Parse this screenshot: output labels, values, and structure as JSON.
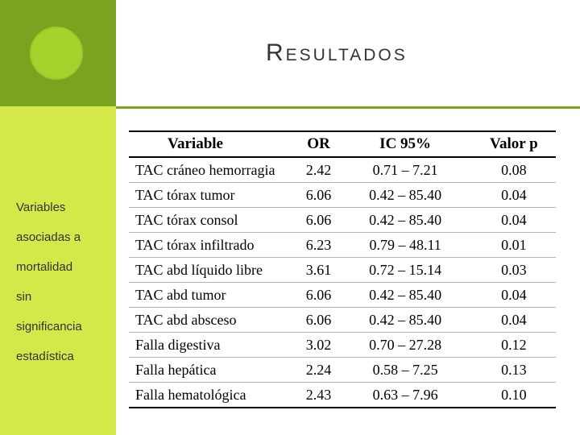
{
  "slide": {
    "title": "Resultados",
    "sidebar_lines": [
      "Variables",
      "asociadas a",
      "mortalidad",
      "sin",
      "significancia",
      "estadística"
    ]
  },
  "colors": {
    "dark_green": "#7aa320",
    "light_green": "#d4e84a",
    "circle": "#a6d22e"
  },
  "table": {
    "headers": [
      "Variable",
      "OR",
      "IC 95%",
      "Valor p"
    ],
    "rows": [
      [
        "TAC cráneo hemorragia",
        "2.42",
        "0.71 – 7.21",
        "0.08"
      ],
      [
        "TAC tórax tumor",
        "6.06",
        "0.42 – 85.40",
        "0.04"
      ],
      [
        "TAC tórax consol",
        "6.06",
        "0.42 – 85.40",
        "0.04"
      ],
      [
        "TAC tórax infiltrado",
        "6.23",
        "0.79 – 48.11",
        "0.01"
      ],
      [
        "TAC abd líquido libre",
        "3.61",
        "0.72 – 15.14",
        "0.03"
      ],
      [
        "TAC abd tumor",
        "6.06",
        "0.42 – 85.40",
        "0.04"
      ],
      [
        "TAC abd absceso",
        "6.06",
        "0.42 – 85.40",
        "0.04"
      ],
      [
        "Falla digestiva",
        "3.02",
        "0.70 – 27.28",
        "0.12"
      ],
      [
        "Falla hepática",
        "2.24",
        "0.58 – 7.25",
        "0.13"
      ],
      [
        "Falla hematológica",
        "2.43",
        "0.63 – 7.96",
        "0.10"
      ]
    ]
  }
}
